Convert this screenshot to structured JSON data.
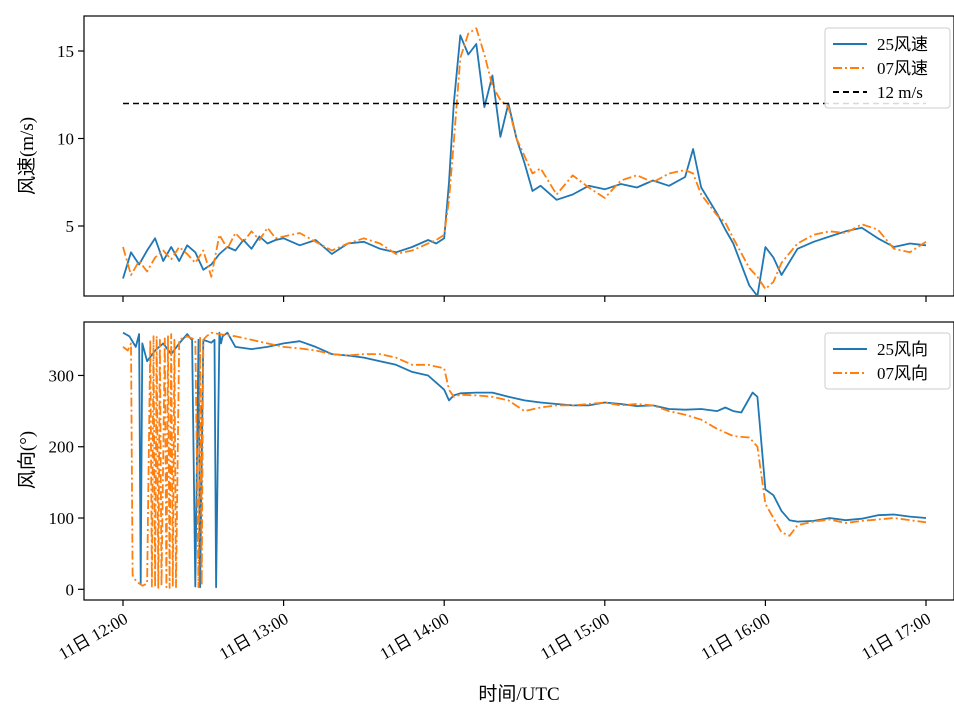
{
  "chart_data": [
    {
      "type": "line",
      "ylabel": "风速(m/s)",
      "ylim": [
        1,
        17
      ],
      "yticks": [
        5,
        10,
        15
      ],
      "legend_position": "top-right",
      "series": [
        {
          "name": "25风速",
          "color": "#1f77b4",
          "style": "solid",
          "x_hours": [
            12.0,
            12.05,
            12.1,
            12.15,
            12.2,
            12.25,
            12.3,
            12.35,
            12.4,
            12.45,
            12.5,
            12.55,
            12.6,
            12.65,
            12.7,
            12.75,
            12.8,
            12.85,
            12.9,
            12.95,
            13.0,
            13.1,
            13.2,
            13.3,
            13.4,
            13.5,
            13.6,
            13.7,
            13.8,
            13.9,
            13.95,
            14.0,
            14.03,
            14.06,
            14.1,
            14.15,
            14.2,
            14.25,
            14.3,
            14.35,
            14.4,
            14.45,
            14.5,
            14.55,
            14.6,
            14.7,
            14.8,
            14.9,
            15.0,
            15.1,
            15.2,
            15.3,
            15.4,
            15.5,
            15.55,
            15.6,
            15.7,
            15.75,
            15.8,
            15.9,
            15.95,
            16.0,
            16.05,
            16.1,
            16.2,
            16.3,
            16.4,
            16.5,
            16.6,
            16.7,
            16.8,
            16.9,
            17.0
          ],
          "values": [
            2.0,
            3.5,
            2.8,
            3.6,
            4.3,
            3.0,
            3.8,
            3.0,
            3.9,
            3.5,
            2.5,
            2.8,
            3.4,
            3.8,
            3.6,
            4.2,
            3.7,
            4.4,
            4.0,
            4.2,
            4.3,
            3.9,
            4.2,
            3.4,
            4.0,
            4.1,
            3.7,
            3.5,
            3.8,
            4.2,
            4.0,
            4.3,
            7.5,
            12.0,
            15.9,
            14.8,
            15.4,
            11.8,
            13.6,
            10.1,
            12.0,
            10.0,
            8.6,
            7.0,
            7.3,
            6.5,
            6.8,
            7.3,
            7.1,
            7.4,
            7.2,
            7.6,
            7.3,
            7.8,
            9.4,
            7.2,
            5.7,
            4.8,
            4.0,
            1.6,
            1.0,
            3.8,
            3.2,
            2.2,
            3.7,
            4.1,
            4.4,
            4.7,
            4.9,
            4.3,
            3.8,
            4.0,
            3.9
          ]
        },
        {
          "name": "07风速",
          "color": "#ff7f0e",
          "style": "dashdot",
          "x_hours": [
            12.0,
            12.05,
            12.1,
            12.15,
            12.2,
            12.25,
            12.3,
            12.35,
            12.4,
            12.45,
            12.5,
            12.55,
            12.6,
            12.65,
            12.7,
            12.75,
            12.8,
            12.85,
            12.9,
            12.95,
            13.0,
            13.1,
            13.2,
            13.3,
            13.4,
            13.5,
            13.6,
            13.7,
            13.8,
            13.9,
            13.95,
            14.0,
            14.03,
            14.06,
            14.1,
            14.15,
            14.2,
            14.25,
            14.3,
            14.35,
            14.4,
            14.45,
            14.5,
            14.55,
            14.6,
            14.7,
            14.8,
            14.9,
            15.0,
            15.1,
            15.2,
            15.3,
            15.4,
            15.5,
            15.55,
            15.6,
            15.7,
            15.75,
            15.8,
            15.9,
            15.95,
            16.0,
            16.05,
            16.1,
            16.2,
            16.3,
            16.4,
            16.5,
            16.6,
            16.7,
            16.8,
            16.9,
            17.0
          ],
          "values": [
            3.8,
            2.2,
            3.0,
            2.4,
            3.2,
            3.6,
            3.1,
            3.8,
            3.4,
            2.9,
            3.6,
            2.1,
            4.5,
            3.7,
            4.6,
            4.1,
            4.7,
            4.2,
            4.9,
            4.3,
            4.4,
            4.6,
            4.1,
            3.6,
            4.0,
            4.3,
            4.0,
            3.4,
            3.6,
            4.0,
            4.2,
            4.5,
            6.5,
            9.8,
            14.6,
            16.0,
            16.3,
            14.8,
            13.0,
            12.2,
            11.8,
            10.0,
            9.0,
            8.0,
            8.3,
            6.8,
            7.9,
            7.2,
            6.6,
            7.6,
            7.9,
            7.5,
            8.0,
            8.2,
            8.0,
            6.8,
            5.6,
            5.2,
            4.3,
            2.6,
            2.1,
            1.4,
            1.8,
            2.9,
            4.0,
            4.5,
            4.7,
            4.6,
            5.1,
            4.8,
            3.7,
            3.5,
            4.1
          ]
        },
        {
          "name": "12 m/s",
          "color": "#000000",
          "style": "dashed",
          "x_hours": [
            12.0,
            17.0
          ],
          "values": [
            12,
            12
          ]
        }
      ]
    },
    {
      "type": "line",
      "xlabel": "时间/UTC",
      "ylabel": "风向(°)",
      "ylim": [
        -15,
        375
      ],
      "yticks": [
        0,
        100,
        200,
        300
      ],
      "xticks": [
        12,
        13,
        14,
        15,
        16,
        17
      ],
      "xtick_labels": [
        "11日 12:00",
        "11日 13:00",
        "11日 14:00",
        "11日 15:00",
        "11日 16:00",
        "11日 17:00"
      ],
      "legend_position": "top-right",
      "series": [
        {
          "name": "25风向",
          "color": "#1f77b4",
          "style": "solid",
          "x_hours": [
            12.0,
            12.04,
            12.08,
            12.1,
            12.11,
            12.12,
            12.15,
            12.2,
            12.25,
            12.3,
            12.35,
            12.4,
            12.42,
            12.43,
            12.45,
            12.47,
            12.48,
            12.5,
            12.55,
            12.57,
            12.58,
            12.6,
            12.61,
            12.62,
            12.65,
            12.7,
            12.8,
            12.9,
            13.0,
            13.1,
            13.2,
            13.3,
            13.4,
            13.5,
            13.6,
            13.7,
            13.8,
            13.9,
            14.0,
            14.03,
            14.06,
            14.1,
            14.2,
            14.3,
            14.4,
            14.5,
            14.6,
            14.7,
            14.8,
            14.9,
            15.0,
            15.1,
            15.2,
            15.3,
            15.4,
            15.5,
            15.6,
            15.7,
            15.75,
            15.8,
            15.85,
            15.88,
            15.92,
            15.95,
            16.0,
            16.05,
            16.1,
            16.15,
            16.2,
            16.3,
            16.4,
            16.5,
            16.6,
            16.7,
            16.8,
            16.9,
            17.0
          ],
          "values": [
            360,
            355,
            340,
            358,
            8,
            345,
            320,
            335,
            345,
            330,
            345,
            358,
            352,
            350,
            4,
            350,
            3,
            350,
            346,
            350,
            3,
            360,
            345,
            355,
            360,
            340,
            337,
            340,
            345,
            348,
            340,
            330,
            328,
            325,
            320,
            315,
            305,
            300,
            280,
            265,
            272,
            275,
            276,
            276,
            270,
            265,
            262,
            260,
            258,
            258,
            262,
            260,
            257,
            258,
            253,
            252,
            253,
            250,
            255,
            250,
            248,
            260,
            276,
            270,
            140,
            132,
            110,
            97,
            95,
            96,
            100,
            97,
            99,
            104,
            105,
            102,
            100
          ]
        },
        {
          "name": "07风向",
          "color": "#ff7f0e",
          "style": "dashdot",
          "x_hours": [
            12.0,
            12.03,
            12.05,
            12.06,
            12.07,
            12.09,
            12.12,
            12.15,
            12.17,
            12.18,
            12.19,
            12.2,
            12.21,
            12.22,
            12.23,
            12.24,
            12.26,
            12.27,
            12.28,
            12.29,
            12.3,
            12.31,
            12.32,
            12.33,
            12.35,
            12.4,
            12.45,
            12.47,
            12.48,
            12.49,
            12.5,
            12.52,
            12.55,
            12.6,
            12.7,
            12.8,
            12.9,
            13.0,
            13.1,
            13.2,
            13.3,
            13.4,
            13.5,
            13.6,
            13.7,
            13.8,
            13.9,
            14.0,
            14.03,
            14.06,
            14.1,
            14.2,
            14.3,
            14.4,
            14.5,
            14.6,
            14.7,
            14.8,
            14.9,
            15.0,
            15.1,
            15.2,
            15.3,
            15.4,
            15.5,
            15.6,
            15.7,
            15.8,
            15.9,
            15.95,
            16.0,
            16.05,
            16.1,
            16.15,
            16.2,
            16.3,
            16.4,
            16.5,
            16.6,
            16.7,
            16.8,
            16.9,
            17.0
          ],
          "values": [
            340,
            335,
            345,
            20,
            15,
            10,
            5,
            8,
            350,
            4,
            355,
            3,
            355,
            2,
            350,
            5,
            352,
            3,
            355,
            2,
            358,
            5,
            350,
            3,
            350,
            355,
            350,
            3,
            355,
            5,
            350,
            355,
            360,
            358,
            355,
            350,
            345,
            340,
            338,
            335,
            330,
            328,
            330,
            330,
            325,
            315,
            315,
            310,
            280,
            270,
            273,
            272,
            270,
            265,
            250,
            255,
            258,
            258,
            260,
            262,
            258,
            260,
            258,
            250,
            245,
            238,
            225,
            215,
            213,
            200,
            120,
            100,
            80,
            75,
            90,
            95,
            98,
            93,
            96,
            98,
            100,
            97,
            94
          ]
        }
      ]
    }
  ]
}
